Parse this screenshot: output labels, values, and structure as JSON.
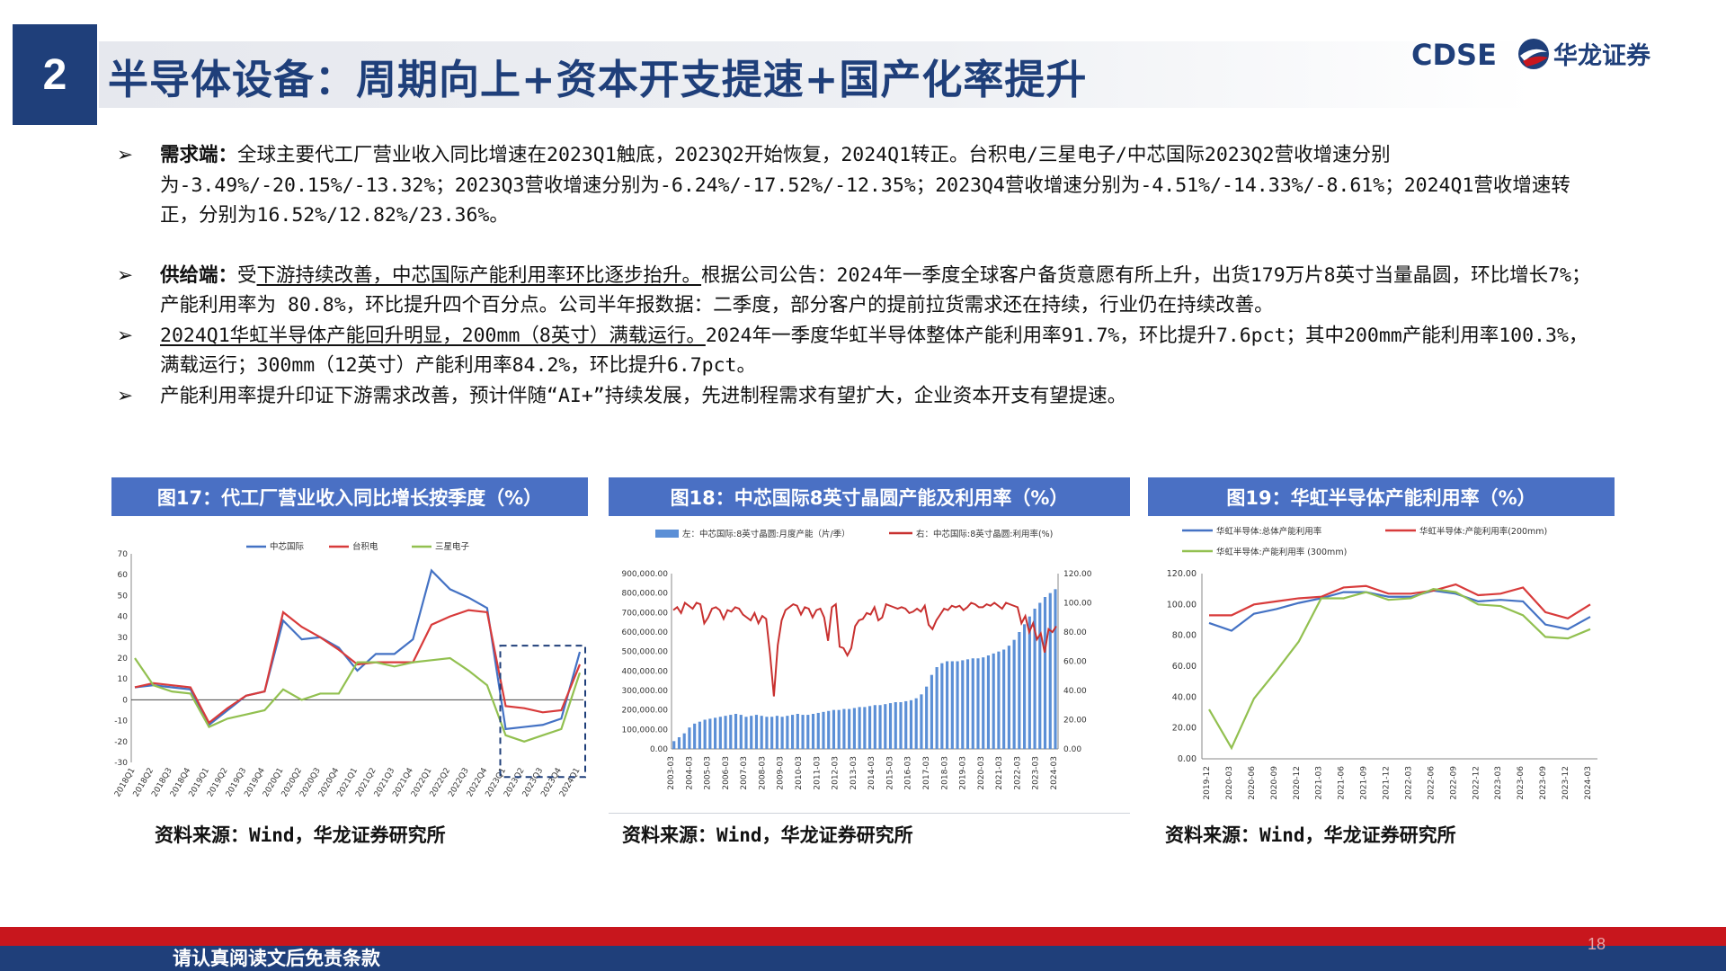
{
  "header": {
    "section_number": "2",
    "title": "半导体设备：周期向上+资本开支提速+国产化率提升",
    "logo_text_en": "CDSE",
    "logo_text_cn": "华龙证券"
  },
  "bullets": [
    {
      "label": "需求端：",
      "text": "全球主要代工厂营业收入同比增速在2023Q1触底，2023Q2开始恢复，2024Q1转正。台积电/三星电子/中芯国际2023Q2营收增速分别为-3.49%/-20.15%/-13.32%；2023Q3营收增速分别为-6.24%/-17.52%/-12.35%；2023Q4营收增速分别为-4.51%/-14.33%/-8.61%；2024Q1营收增速转正，分别为16.52%/12.82%/23.36%。"
    },
    {
      "label": "供给端：",
      "pre": "受",
      "underlined": "下游持续改善，中芯国际产能利用率环比逐步抬升。",
      "text": "根据公司公告：2024年一季度全球客户备货意愿有所上升，出货179万片8英寸当量晶圆，环比增长7%；产能利用率为 80.8%，环比提升四个百分点。公司半年报数据：二季度，部分客户的提前拉货需求还在持续，行业仍在持续改善。"
    },
    {
      "underlined": "2024Q1华虹半导体产能回升明显，200mm（8英寸）满载运行。",
      "text": "2024年一季度华虹半导体整体产能利用率91.7%，环比提升7.6pct；其中200mm产能利用率100.3%，满载运行；300mm（12英寸）产能利用率84.2%，环比提升6.7pct。"
    },
    {
      "text": "产能利用率提升印证下游需求改善，预计伴随“AI+”持续发展，先进制程需求有望扩大，企业资本开支有望提速。"
    }
  ],
  "figures": [
    {
      "title": "图17：代工厂营业收入同比增长按季度（%）",
      "source": "资料来源：Wind，华龙证券研究所"
    },
    {
      "title": "图18：中芯国际8英寸晶圆产能及利用率（%）",
      "source": "资料来源：Wind，华龙证券研究所"
    },
    {
      "title": "图19：华虹半导体产能利用率（%）",
      "source": "资料来源：Wind，华龙证券研究所"
    }
  ],
  "chart_data": [
    {
      "type": "line",
      "ylim": [
        -30,
        70
      ],
      "yticks": [
        "70",
        "60",
        "50",
        "40",
        "30",
        "20",
        "10",
        "0",
        "-10",
        "-20",
        "-30"
      ],
      "categories": [
        "2018Q1",
        "2018Q2",
        "2018Q3",
        "2018Q4",
        "2019Q1",
        "2019Q2",
        "2019Q3",
        "2019Q4",
        "2020Q1",
        "2020Q2",
        "2020Q3",
        "2020Q4",
        "2021Q1",
        "2021Q2",
        "2021Q3",
        "2021Q4",
        "2022Q1",
        "2022Q2",
        "2022Q3",
        "2022Q4",
        "2023Q1",
        "2023Q2",
        "2023Q3",
        "2023Q4",
        "2024Q1"
      ],
      "series": [
        {
          "name": "中芯国际",
          "color": "#4472c4",
          "values": [
            6,
            7,
            6,
            5,
            -12,
            -5,
            2,
            4,
            38,
            29,
            30,
            25,
            14,
            22,
            22,
            29,
            62,
            53,
            49,
            44,
            -14,
            -13,
            -12,
            -9,
            23
          ]
        },
        {
          "name": "台积电",
          "color": "#d83b3b",
          "values": [
            6,
            8,
            7,
            6,
            -11,
            -4,
            2,
            4,
            42,
            35,
            30,
            24,
            17,
            18,
            18,
            18,
            36,
            40,
            43,
            42,
            -3,
            -4,
            -6,
            -5,
            17
          ]
        },
        {
          "name": "三星电子",
          "color": "#92c050",
          "values": [
            20,
            7,
            4,
            3,
            -13,
            -9,
            -7,
            -5,
            5,
            0,
            3,
            3,
            18,
            18,
            16,
            18,
            19,
            20,
            14,
            7,
            -17,
            -20,
            -17,
            -14,
            13
          ]
        }
      ]
    },
    {
      "type": "bar+line",
      "legend": [
        "左：中芯国际:8英寸晶圆:月度产能（片/季）",
        "右：中芯国际:8英寸晶圆:利用率(%)"
      ],
      "y_left_ticks": [
        "900,000.00",
        "800,000.00",
        "700,000.00",
        "600,000.00",
        "500,000.00",
        "400,000.00",
        "300,000.00",
        "200,000.00",
        "100,000.00",
        "0.00"
      ],
      "y_right_ticks": [
        "120.00",
        "100.00",
        "80.00",
        "60.00",
        "40.00",
        "20.00",
        "0.00"
      ],
      "ylim_left": [
        0,
        900000
      ],
      "ylim_right": [
        0,
        120
      ],
      "x_labels": [
        "2003-03",
        "2004-03",
        "2005-03",
        "2006-03",
        "2007-03",
        "2008-03",
        "2009-03",
        "2010-03",
        "2011-03",
        "2012-03",
        "2013-03",
        "2014-03",
        "2015-03",
        "2016-03",
        "2017-03",
        "2018-03",
        "2019-03",
        "2020-03",
        "2021-03",
        "2022-03",
        "2023-03",
        "2024-03"
      ],
      "capacity": [
        40000,
        60000,
        80000,
        110000,
        130000,
        140000,
        150000,
        155000,
        160000,
        165000,
        170000,
        175000,
        180000,
        175000,
        165000,
        170000,
        175000,
        170000,
        165000,
        165000,
        170000,
        165000,
        170000,
        175000,
        180000,
        175000,
        175000,
        180000,
        185000,
        190000,
        195000,
        200000,
        200000,
        205000,
        205000,
        210000,
        215000,
        215000,
        220000,
        225000,
        225000,
        230000,
        235000,
        240000,
        240000,
        245000,
        250000,
        260000,
        280000,
        320000,
        380000,
        420000,
        440000,
        450000,
        450000,
        450000,
        455000,
        460000,
        465000,
        465000,
        470000,
        480000,
        490000,
        500000,
        510000,
        530000,
        560000,
        600000,
        640000,
        680000,
        720000,
        750000,
        780000,
        800000,
        820000
      ],
      "utilization": [
        95,
        97,
        93,
        100,
        98,
        96,
        100,
        99,
        86,
        90,
        96,
        97,
        95,
        89,
        95,
        94,
        97,
        96,
        92,
        90,
        88,
        93,
        86,
        91,
        89,
        65,
        36,
        71,
        88,
        95,
        97,
        99,
        98,
        92,
        97,
        96,
        90,
        95,
        96,
        90,
        74,
        97,
        99,
        70,
        69,
        64,
        69,
        84,
        88,
        89,
        93,
        92,
        97,
        88,
        90,
        99,
        98,
        97,
        96,
        97,
        96,
        93,
        94,
        96,
        94,
        98,
        85,
        82,
        88,
        92,
        96,
        95,
        98,
        97,
        98,
        95,
        97,
        100,
        99,
        97,
        97,
        99,
        98,
        100,
        98,
        96,
        100,
        99,
        98,
        97,
        86,
        91,
        80,
        86,
        75,
        79,
        66,
        82,
        80,
        84
      ]
    },
    {
      "type": "line",
      "ylim": [
        0,
        120
      ],
      "yticks": [
        "120.00",
        "100.00",
        "80.00",
        "60.00",
        "40.00",
        "20.00",
        "0.00"
      ],
      "categories": [
        "2019-12",
        "2020-03",
        "2020-06",
        "2020-09",
        "2020-12",
        "2021-03",
        "2021-06",
        "2021-09",
        "2021-12",
        "2022-03",
        "2022-06",
        "2022-09",
        "2022-12",
        "2023-03",
        "2023-06",
        "2023-09",
        "2023-12",
        "2024-03"
      ],
      "series": [
        {
          "name": "华虹半导体:总体产能利用率",
          "color": "#4472c4",
          "values": [
            88,
            83,
            94,
            97,
            101,
            104,
            108,
            108,
            105,
            105,
            109,
            107,
            102,
            103,
            102,
            87,
            84,
            92
          ]
        },
        {
          "name": "华虹半导体:产能利用率(200mm)",
          "color": "#d83b3b",
          "values": [
            93,
            93,
            100,
            102,
            104,
            105,
            111,
            112,
            107,
            107,
            109,
            113,
            106,
            107,
            111,
            95,
            91,
            100
          ]
        },
        {
          "name": "华虹半导体:产能利用率 (300mm)",
          "color": "#92c050",
          "values": [
            32,
            7,
            39,
            57,
            76,
            104,
            104,
            108,
            103,
            104,
            110,
            108,
            100,
            99,
            93,
            79,
            78,
            84
          ]
        }
      ]
    }
  ],
  "footer": {
    "disclaimer": "请认真阅读文后免责条款",
    "page_number": "18"
  },
  "colors": {
    "brand_blue": "#1f3f7a",
    "figure_header": "#4a70c4",
    "footer_red": "#c8161d"
  }
}
